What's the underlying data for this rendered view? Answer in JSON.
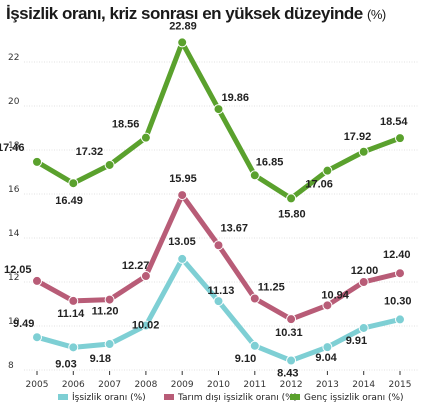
{
  "chart_data": {
    "type": "line",
    "title": "İşsizlik oranı, kriz sonrası en yüksek düzeyinde",
    "title_unit": "(%)",
    "xlabel": "",
    "ylabel": "",
    "x": [
      "2005",
      "2006",
      "2007",
      "2008",
      "2009",
      "2010",
      "2011",
      "2012",
      "2013",
      "2014",
      "2015"
    ],
    "ylim": [
      8,
      23
    ],
    "yticks": [
      8,
      10,
      12,
      14,
      16,
      18,
      20,
      22
    ],
    "grid": true,
    "legend_position": "bottom",
    "series": [
      {
        "name": "İşsizlik oranı (%)",
        "color": "#7ecfd4",
        "values": [
          9.49,
          9.03,
          9.18,
          10.02,
          13.05,
          11.13,
          9.1,
          8.43,
          9.04,
          9.91,
          10.3
        ]
      },
      {
        "name": "Tarım dışı işsizlik oranı (%)",
        "color": "#b85c77",
        "values": [
          12.05,
          11.14,
          11.2,
          12.27,
          15.95,
          13.67,
          11.25,
          10.31,
          10.94,
          12.0,
          12.4
        ]
      },
      {
        "name": "Genç işsizlik oranı (%)",
        "color": "#5aa12d",
        "values": [
          17.46,
          16.49,
          17.32,
          18.56,
          22.89,
          19.86,
          16.85,
          15.8,
          17.06,
          17.92,
          18.54
        ]
      }
    ]
  }
}
